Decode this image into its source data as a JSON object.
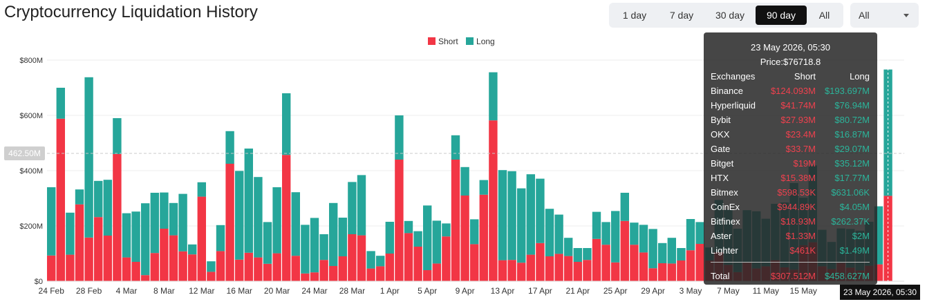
{
  "title": "Cryptocurrency Liquidation History",
  "range_buttons": [
    "1 day",
    "7 day",
    "30 day",
    "90 day",
    "All"
  ],
  "active_range": "90 day",
  "dropdown_value": "All",
  "legend": {
    "short": "Short",
    "long": "Long"
  },
  "colors": {
    "short": "#f23645",
    "long": "#26a69a"
  },
  "crosshair_y_label": "462.50M",
  "crosshair_x_label": "23 May 2026, 05:30",
  "tooltip": {
    "time": "23 May 2026, 05:30",
    "price": "Price:$76718.8",
    "header": {
      "exchange": "Exchanges",
      "short": "Short",
      "long": "Long"
    },
    "rows": [
      {
        "exchange": "Binance",
        "short": "$124.093M",
        "long": "$193.697M"
      },
      {
        "exchange": "Hyperliquid",
        "short": "$41.74M",
        "long": "$76.94M"
      },
      {
        "exchange": "Bybit",
        "short": "$27.93M",
        "long": "$80.72M"
      },
      {
        "exchange": "OKX",
        "short": "$23.4M",
        "long": "$16.87M"
      },
      {
        "exchange": "Gate",
        "short": "$33.7M",
        "long": "$29.07M"
      },
      {
        "exchange": "Bitget",
        "short": "$19M",
        "long": "$35.12M"
      },
      {
        "exchange": "HTX",
        "short": "$15.38M",
        "long": "$17.77M"
      },
      {
        "exchange": "Bitmex",
        "short": "$598.53K",
        "long": "$631.06K"
      },
      {
        "exchange": "CoinEx",
        "short": "$944.89K",
        "long": "$4.05M"
      },
      {
        "exchange": "Bitfinex",
        "short": "$18.93M",
        "long": "$262.37K"
      },
      {
        "exchange": "Aster",
        "short": "$1.33M",
        "long": "$2M"
      },
      {
        "exchange": "Lighter",
        "short": "$461K",
        "long": "$1.49M"
      }
    ],
    "total": {
      "label": "Total",
      "short": "$307.512M",
      "long": "$458.627M"
    }
  },
  "chart_data": {
    "type": "bar",
    "stacked": true,
    "ylim": [
      0,
      800
    ],
    "y_ticks": [
      "$0",
      "$200M",
      "$400M",
      "$600M",
      "$800M"
    ],
    "x_tick_labels": [
      "24 Feb",
      "28 Feb",
      "4 Mar",
      "8 Mar",
      "12 Mar",
      "16 Mar",
      "20 Mar",
      "24 Mar",
      "28 Mar",
      "1 Apr",
      "5 Apr",
      "9 Apr",
      "13 Apr",
      "17 Apr",
      "21 Apr",
      "25 Apr",
      "29 Apr",
      "3 May",
      "7 May",
      "11 May",
      "15 May"
    ],
    "units": "$M",
    "series": [
      {
        "name": "Short",
        "values": [
          93,
          588,
          96,
          278,
          158,
          232,
          165,
          460,
          86,
          70,
          22,
          102,
          190,
          166,
          108,
          97,
          306,
          34,
          109,
          425,
          78,
          103,
          86,
          63,
          101,
          457,
          92,
          28,
          32,
          77,
          55,
          90,
          170,
          166,
          46,
          54,
          100,
          440,
          174,
          125,
          40,
          64,
          162,
          440,
          310,
          134,
          313,
          582,
          76,
          77,
          67,
          96,
          138,
          90,
          99,
          91,
          70,
          77,
          153,
          132,
          68,
          218,
          132,
          104,
          47,
          65,
          64,
          75,
          112,
          135,
          75,
          105,
          59,
          33,
          67,
          46,
          54,
          76,
          50,
          42,
          130,
          141,
          54,
          44,
          66,
          49,
          39,
          56,
          61,
          309
        ],
        "ubound_note": "short values in $M"
      },
      {
        "name": "Long",
        "values": [
          247,
          112,
          152,
          54,
          580,
          131,
          202,
          130,
          160,
          182,
          260,
          218,
          131,
          117,
          208,
          36,
          52,
          38,
          94,
          118,
          321,
          377,
          291,
          151,
          239,
          223,
          230,
          176,
          197,
          93,
          228,
          140,
          189,
          218,
          63,
          38,
          115,
          160,
          44,
          56,
          234,
          155,
          47,
          88,
          103,
          90,
          53,
          174,
          326,
          321,
          269,
          291,
          233,
          172,
          142,
          66,
          50,
          43,
          98,
          82,
          186,
          102,
          80,
          100,
          142,
          73,
          93,
          45,
          113,
          79,
          47,
          189,
          200,
          157,
          190,
          207,
          172,
          204,
          235,
          313,
          172,
          278,
          132,
          98,
          125,
          140,
          144,
          159,
          210,
          457
        ],
        "note": "long values in $M"
      }
    ]
  }
}
